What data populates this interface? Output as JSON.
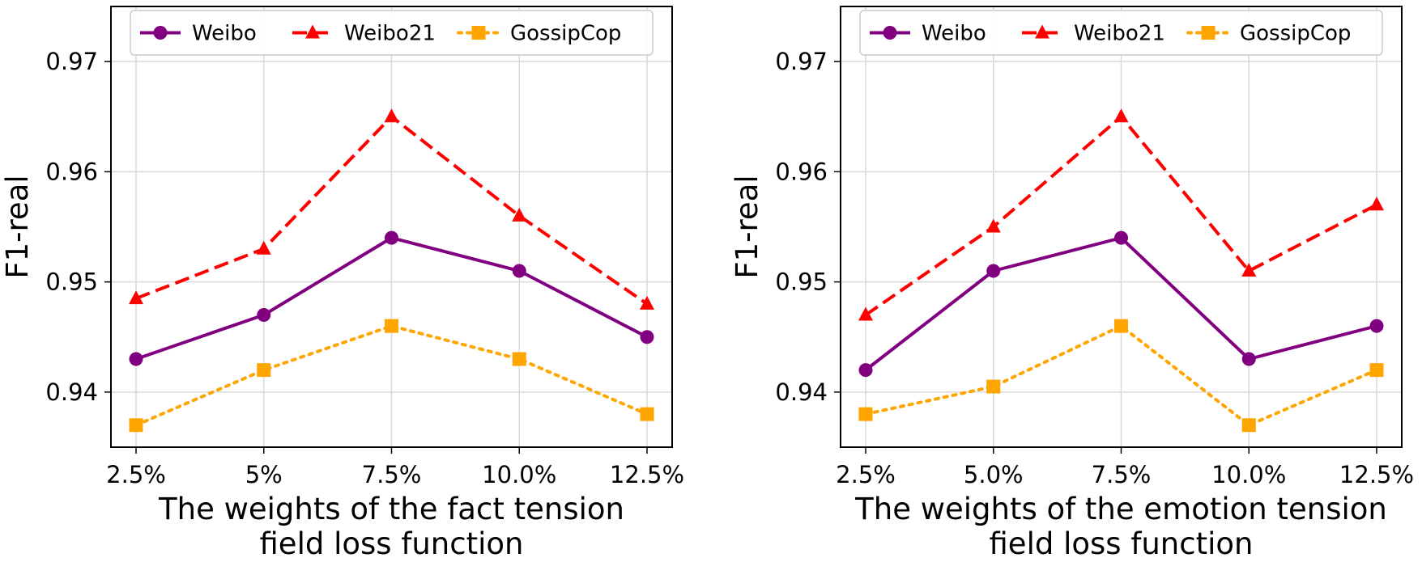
{
  "colors": {
    "Weibo": "#800080",
    "Weibo21": "#ff0000",
    "GossipCop": "#ffa500",
    "grid": "#d9d9d9",
    "axis": "#000000"
  },
  "chart_data": [
    {
      "type": "line",
      "title": "",
      "categories": [
        "2.5%",
        "5%",
        "7.5%",
        "10.0%",
        "12.5%"
      ],
      "xlabel_lines": [
        "The weights of the fact tension",
        "field loss function"
      ],
      "ylabel": "F1-real",
      "ylim": [
        0.935,
        0.975
      ],
      "yticks": [
        0.94,
        0.95,
        0.96,
        0.97
      ],
      "ytick_labels": [
        "0.94",
        "0.95",
        "0.96",
        "0.97"
      ],
      "grid": true,
      "legend": "top-center",
      "series": [
        {
          "name": "Weibo",
          "marker": "circle",
          "linestyle": "solid",
          "values": [
            0.943,
            0.947,
            0.954,
            0.951,
            0.945
          ]
        },
        {
          "name": "Weibo21",
          "marker": "triangle",
          "linestyle": "dashed",
          "values": [
            0.9485,
            0.953,
            0.965,
            0.956,
            0.948
          ]
        },
        {
          "name": "GossipCop",
          "marker": "square",
          "linestyle": "dotted",
          "values": [
            0.937,
            0.942,
            0.946,
            0.943,
            0.938
          ]
        }
      ]
    },
    {
      "type": "line",
      "title": "",
      "categories": [
        "2.5%",
        "5.0%",
        "7.5%",
        "10.0%",
        "12.5%"
      ],
      "xlabel_lines": [
        "The weights of the emotion tension",
        "field loss function"
      ],
      "ylabel": "F1-real",
      "ylim": [
        0.935,
        0.975
      ],
      "yticks": [
        0.94,
        0.95,
        0.96,
        0.97
      ],
      "ytick_labels": [
        "0.94",
        "0.95",
        "0.96",
        "0.97"
      ],
      "grid": true,
      "legend": "top-center",
      "series": [
        {
          "name": "Weibo",
          "marker": "circle",
          "linestyle": "solid",
          "values": [
            0.942,
            0.951,
            0.954,
            0.943,
            0.946
          ]
        },
        {
          "name": "Weibo21",
          "marker": "triangle",
          "linestyle": "dashed",
          "values": [
            0.947,
            0.955,
            0.965,
            0.951,
            0.957
          ]
        },
        {
          "name": "GossipCop",
          "marker": "square",
          "linestyle": "dotted",
          "values": [
            0.938,
            0.9405,
            0.946,
            0.937,
            0.942
          ]
        }
      ]
    }
  ]
}
